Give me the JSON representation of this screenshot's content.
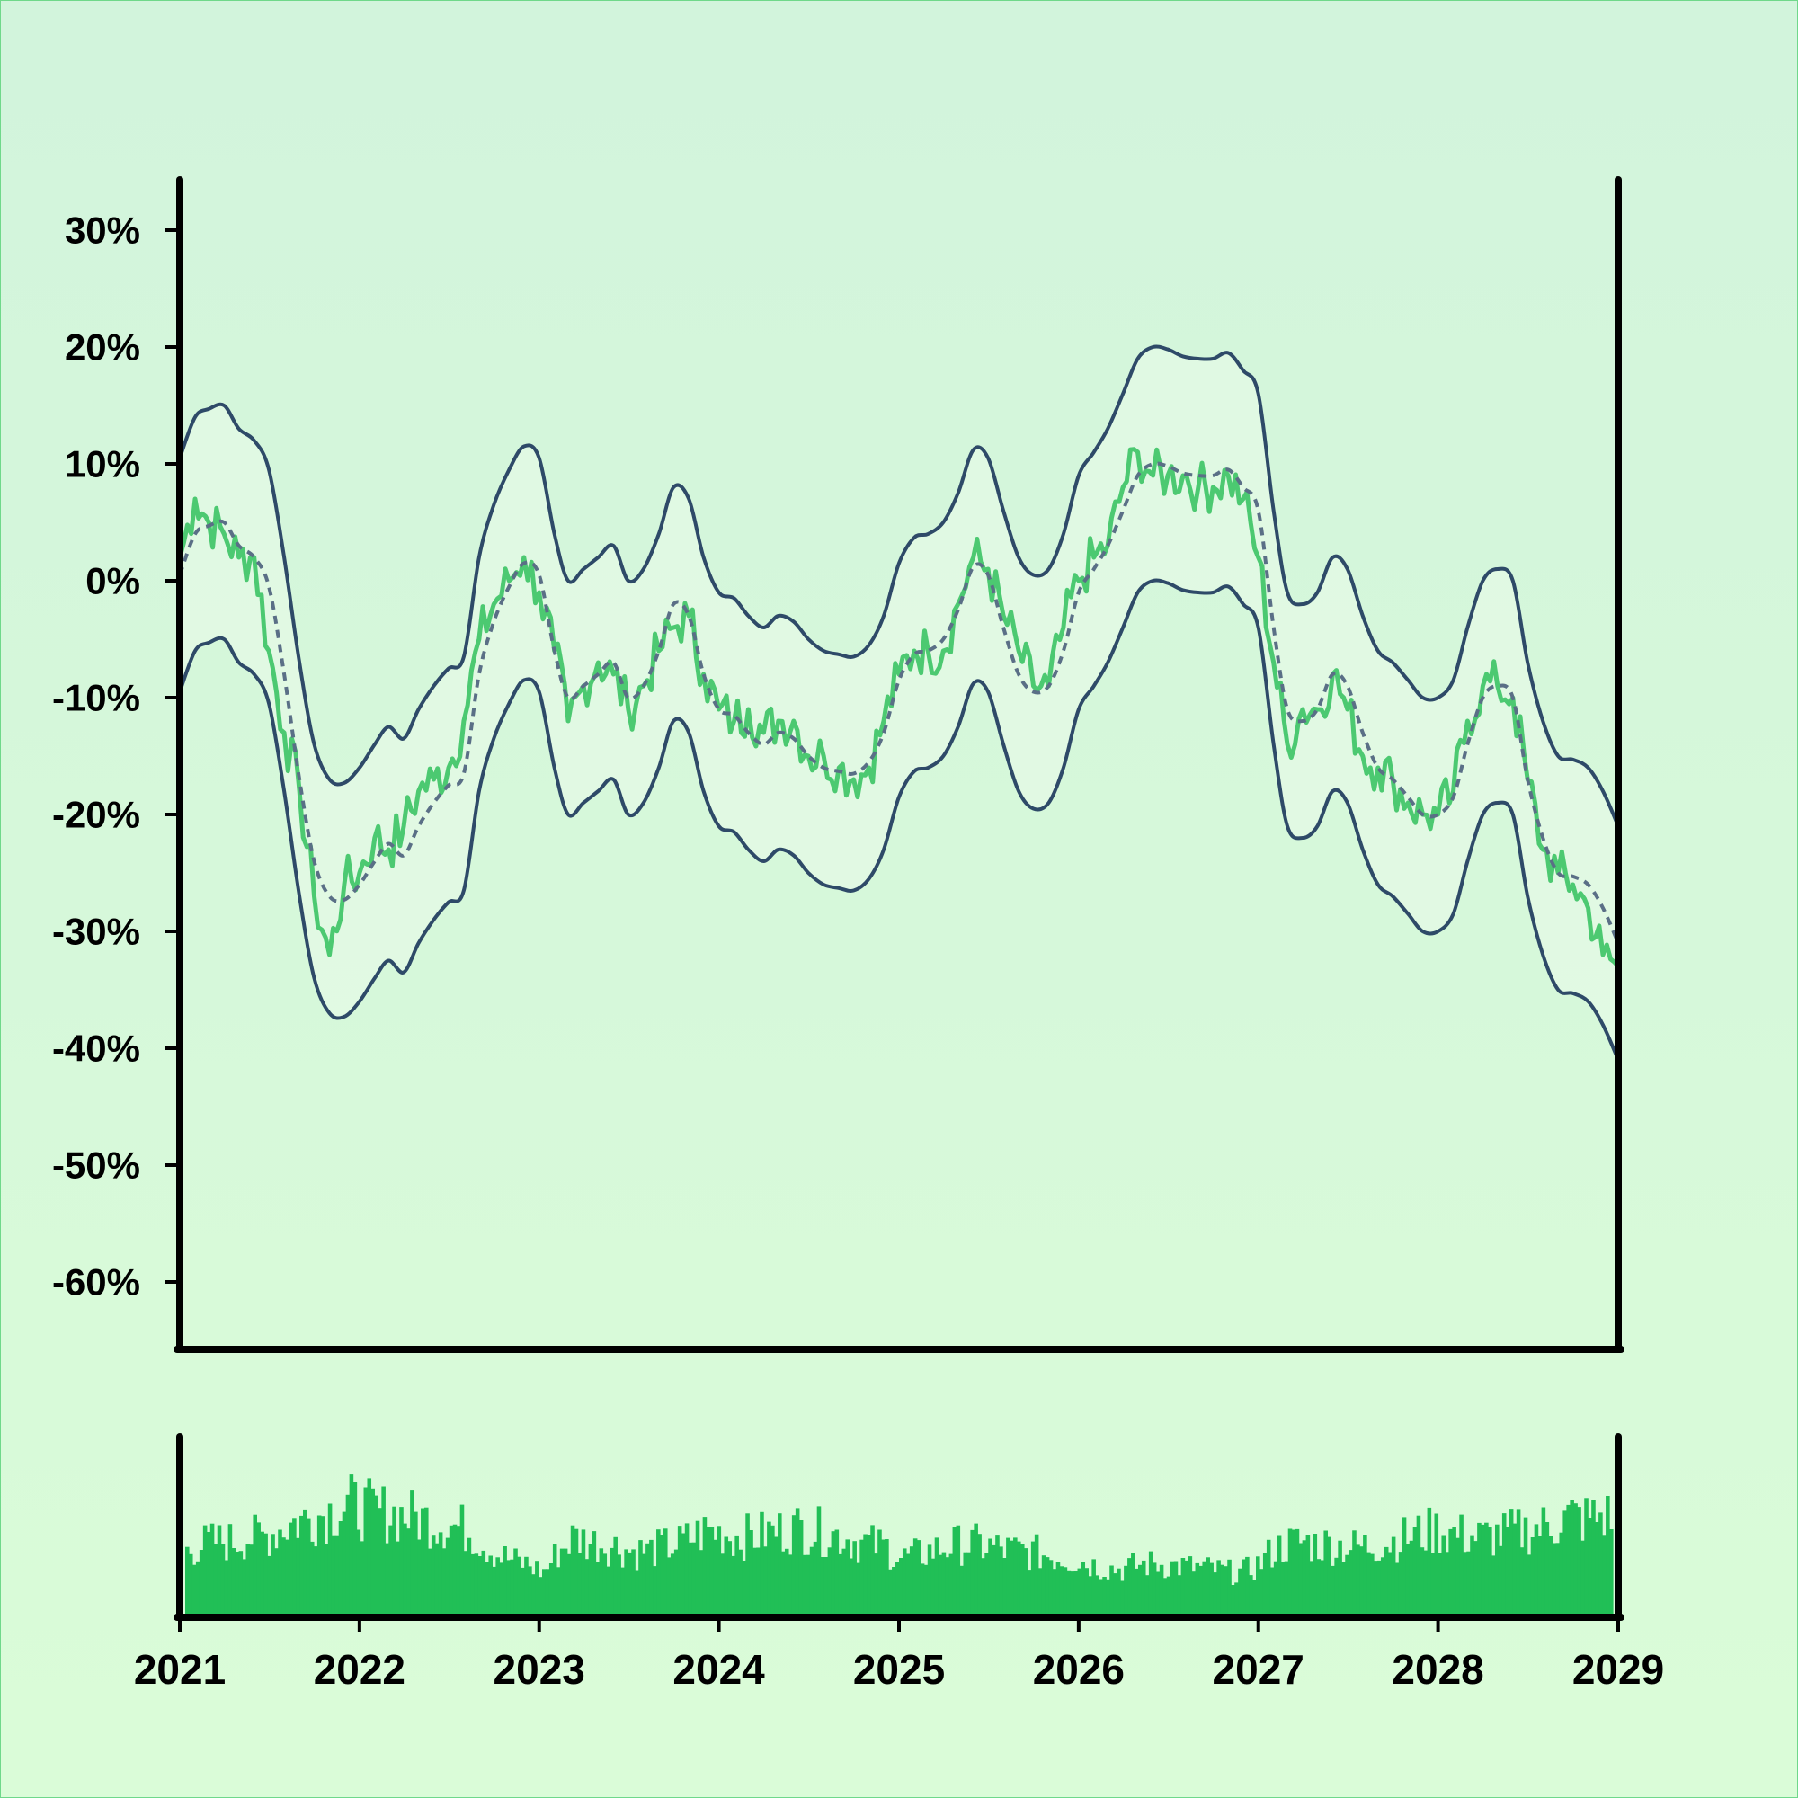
{
  "chart_data": [
    {
      "type": "line",
      "title": "",
      "xlabel": "",
      "ylabel": "",
      "x_range": [
        "2021-01-01",
        "2029-01-01"
      ],
      "ylim": [
        -0.65,
        0.35
      ],
      "y_tick_labels": [
        "30%",
        "20%",
        "10%",
        "0%",
        "-10%",
        "-20%",
        "-30%",
        "-40%",
        "-50%",
        "-60%"
      ],
      "y_tick_values": [
        0.3,
        0.2,
        0.1,
        0.0,
        -0.1,
        -0.2,
        -0.3,
        -0.4,
        -0.5,
        -0.6
      ],
      "x_tick_labels": [
        "2021",
        "2022",
        "2023",
        "2024",
        "2025",
        "2026",
        "2027",
        "2028",
        "2029"
      ],
      "grid": false,
      "legend": "none",
      "series": [
        {
          "role": "price",
          "color": "#4cc971",
          "style": "solid",
          "points": [
            [
              "2021-01-01",
              0.02
            ],
            [
              "2021-02-01",
              0.07
            ],
            [
              "2021-03-01",
              0.05
            ],
            [
              "2021-04-01",
              0.04
            ],
            [
              "2021-05-01",
              0.02
            ],
            [
              "2021-06-01",
              0.02
            ],
            [
              "2021-07-01",
              -0.06
            ],
            [
              "2021-08-01",
              -0.13
            ],
            [
              "2021-09-01",
              -0.18
            ],
            [
              "2021-10-01",
              -0.27
            ],
            [
              "2021-11-01",
              -0.32
            ],
            [
              "2021-12-01",
              -0.26
            ],
            [
              "2022-01-01",
              -0.25
            ],
            [
              "2022-02-01",
              -0.22
            ],
            [
              "2022-03-01",
              -0.23
            ],
            [
              "2022-04-01",
              -0.21
            ],
            [
              "2022-05-01",
              -0.18
            ],
            [
              "2022-06-01",
              -0.17
            ],
            [
              "2022-07-01",
              -0.16
            ],
            [
              "2022-08-01",
              -0.12
            ],
            [
              "2022-09-01",
              -0.05
            ],
            [
              "2022-10-01",
              -0.02
            ],
            [
              "2022-11-01",
              0.0
            ],
            [
              "2022-12-01",
              0.02
            ],
            [
              "2023-01-01",
              -0.01
            ],
            [
              "2023-02-01",
              -0.06
            ],
            [
              "2023-03-01",
              -0.12
            ],
            [
              "2023-04-01",
              -0.09
            ],
            [
              "2023-05-01",
              -0.07
            ],
            [
              "2023-06-01",
              -0.08
            ],
            [
              "2023-07-01",
              -0.11
            ],
            [
              "2023-08-01",
              -0.09
            ],
            [
              "2023-09-01",
              -0.06
            ],
            [
              "2023-10-01",
              -0.04
            ],
            [
              "2023-11-01",
              -0.03
            ],
            [
              "2023-12-01",
              -0.08
            ],
            [
              "2024-01-01",
              -0.11
            ],
            [
              "2024-02-01",
              -0.12
            ],
            [
              "2024-03-01",
              -0.11
            ],
            [
              "2024-04-01",
              -0.13
            ],
            [
              "2024-05-01",
              -0.12
            ],
            [
              "2024-06-01",
              -0.12
            ],
            [
              "2024-07-01",
              -0.15
            ],
            [
              "2024-08-01",
              -0.15
            ],
            [
              "2024-09-01",
              -0.16
            ],
            [
              "2024-10-01",
              -0.17
            ],
            [
              "2024-11-01",
              -0.16
            ],
            [
              "2024-12-01",
              -0.12
            ],
            [
              "2025-01-01",
              -0.08
            ],
            [
              "2025-02-01",
              -0.06
            ],
            [
              "2025-03-01",
              -0.06
            ],
            [
              "2025-04-01",
              -0.06
            ],
            [
              "2025-05-01",
              -0.02
            ],
            [
              "2025-06-01",
              0.02
            ],
            [
              "2025-07-01",
              0.01
            ],
            [
              "2025-08-01",
              -0.03
            ],
            [
              "2025-09-01",
              -0.06
            ],
            [
              "2025-10-01",
              -0.09
            ],
            [
              "2025-11-01",
              -0.09
            ],
            [
              "2025-12-01",
              -0.04
            ],
            [
              "2026-01-01",
              -0.0
            ],
            [
              "2026-02-01",
              0.02
            ],
            [
              "2026-03-01",
              0.03
            ],
            [
              "2026-04-01",
              0.08
            ],
            [
              "2026-05-01",
              0.11
            ],
            [
              "2026-06-01",
              0.09
            ],
            [
              "2026-07-01",
              0.09
            ],
            [
              "2026-08-01",
              0.09
            ],
            [
              "2026-09-01",
              0.08
            ],
            [
              "2026-10-01",
              0.08
            ],
            [
              "2026-11-01",
              0.09
            ],
            [
              "2026-12-01",
              0.07
            ],
            [
              "2027-01-01",
              0.02
            ],
            [
              "2027-02-01",
              -0.07
            ],
            [
              "2027-03-01",
              -0.14
            ],
            [
              "2027-04-01",
              -0.11
            ],
            [
              "2027-05-01",
              -0.11
            ],
            [
              "2027-06-01",
              -0.08
            ],
            [
              "2027-07-01",
              -0.11
            ],
            [
              "2027-08-01",
              -0.15
            ],
            [
              "2027-09-01",
              -0.16
            ],
            [
              "2027-10-01",
              -0.17
            ],
            [
              "2027-11-01",
              -0.19
            ],
            [
              "2027-12-01",
              -0.2
            ],
            [
              "2028-01-01",
              -0.2
            ],
            [
              "2028-02-01",
              -0.18
            ],
            [
              "2028-03-01",
              -0.12
            ],
            [
              "2028-04-01",
              -0.09
            ],
            [
              "2028-05-01",
              -0.09
            ],
            [
              "2028-06-01",
              -0.1
            ],
            [
              "2028-07-01",
              -0.17
            ],
            [
              "2028-08-01",
              -0.23
            ],
            [
              "2028-09-01",
              -0.25
            ],
            [
              "2028-10-01",
              -0.26
            ],
            [
              "2028-11-01",
              -0.28
            ],
            [
              "2028-12-01",
              -0.32
            ],
            [
              "2029-01-01",
              -0.33
            ]
          ]
        },
        {
          "role": "moving-average",
          "color": "#5a6f86",
          "style": "dashed",
          "points": [
            [
              "2021-01-01",
              0.005
            ],
            [
              "2021-02-01",
              0.04
            ],
            [
              "2021-03-01",
              0.047
            ],
            [
              "2021-04-01",
              0.05
            ],
            [
              "2021-05-01",
              0.03
            ],
            [
              "2021-06-01",
              0.02
            ],
            [
              "2021-07-01",
              -0.005
            ],
            [
              "2021-08-01",
              -0.08
            ],
            [
              "2021-09-01",
              -0.17
            ],
            [
              "2021-10-01",
              -0.24
            ],
            [
              "2021-11-01",
              -0.27
            ],
            [
              "2021-12-01",
              -0.273
            ],
            [
              "2022-01-01",
              -0.26
            ],
            [
              "2022-02-01",
              -0.24
            ],
            [
              "2022-03-01",
              -0.225
            ],
            [
              "2022-04-01",
              -0.235
            ],
            [
              "2022-05-01",
              -0.21
            ],
            [
              "2022-06-01",
              -0.19
            ],
            [
              "2022-07-01",
              -0.175
            ],
            [
              "2022-08-01",
              -0.165
            ],
            [
              "2022-09-01",
              -0.08
            ],
            [
              "2022-10-01",
              -0.035
            ],
            [
              "2022-11-01",
              -0.005
            ],
            [
              "2022-12-01",
              0.015
            ],
            [
              "2023-01-01",
              0.005
            ],
            [
              "2023-02-01",
              -0.06
            ],
            [
              "2023-03-01",
              -0.1
            ],
            [
              "2023-04-01",
              -0.09
            ],
            [
              "2023-05-01",
              -0.08
            ],
            [
              "2023-06-01",
              -0.07
            ],
            [
              "2023-07-01",
              -0.1
            ],
            [
              "2023-08-01",
              -0.09
            ],
            [
              "2023-09-01",
              -0.06
            ],
            [
              "2023-10-01",
              -0.02
            ],
            [
              "2023-11-01",
              -0.03
            ],
            [
              "2023-12-01",
              -0.08
            ],
            [
              "2024-01-01",
              -0.11
            ],
            [
              "2024-02-01",
              -0.115
            ],
            [
              "2024-03-01",
              -0.13
            ],
            [
              "2024-04-01",
              -0.14
            ],
            [
              "2024-05-01",
              -0.13
            ],
            [
              "2024-06-01",
              -0.135
            ],
            [
              "2024-07-01",
              -0.15
            ],
            [
              "2024-08-01",
              -0.16
            ],
            [
              "2024-09-01",
              -0.163
            ],
            [
              "2024-10-01",
              -0.165
            ],
            [
              "2024-11-01",
              -0.155
            ],
            [
              "2024-12-01",
              -0.13
            ],
            [
              "2025-01-01",
              -0.085
            ],
            [
              "2025-02-01",
              -0.063
            ],
            [
              "2025-03-01",
              -0.06
            ],
            [
              "2025-04-01",
              -0.05
            ],
            [
              "2025-05-01",
              -0.025
            ],
            [
              "2025-06-01",
              0.012
            ],
            [
              "2025-07-01",
              0.005
            ],
            [
              "2025-08-01",
              -0.04
            ],
            [
              "2025-09-01",
              -0.08
            ],
            [
              "2025-10-01",
              -0.095
            ],
            [
              "2025-11-01",
              -0.09
            ],
            [
              "2025-12-01",
              -0.06
            ],
            [
              "2026-01-01",
              -0.01
            ],
            [
              "2026-02-01",
              0.01
            ],
            [
              "2026-03-01",
              0.03
            ],
            [
              "2026-04-01",
              0.06
            ],
            [
              "2026-05-01",
              0.09
            ],
            [
              "2026-06-01",
              0.1
            ],
            [
              "2026-07-01",
              0.098
            ],
            [
              "2026-08-01",
              0.092
            ],
            [
              "2026-09-01",
              0.09
            ],
            [
              "2026-10-01",
              0.09
            ],
            [
              "2026-11-01",
              0.095
            ],
            [
              "2026-12-01",
              0.08
            ],
            [
              "2027-01-01",
              0.06
            ],
            [
              "2027-02-01",
              -0.04
            ],
            [
              "2027-03-01",
              -0.11
            ],
            [
              "2027-04-01",
              -0.12
            ],
            [
              "2027-05-01",
              -0.11
            ],
            [
              "2027-06-01",
              -0.08
            ],
            [
              "2027-07-01",
              -0.09
            ],
            [
              "2027-08-01",
              -0.13
            ],
            [
              "2027-09-01",
              -0.16
            ],
            [
              "2027-10-01",
              -0.17
            ],
            [
              "2027-11-01",
              -0.185
            ],
            [
              "2027-12-01",
              -0.2
            ],
            [
              "2028-01-01",
              -0.2
            ],
            [
              "2028-02-01",
              -0.185
            ],
            [
              "2028-03-01",
              -0.14
            ],
            [
              "2028-04-01",
              -0.1
            ],
            [
              "2028-05-01",
              -0.09
            ],
            [
              "2028-06-01",
              -0.1
            ],
            [
              "2028-07-01",
              -0.17
            ],
            [
              "2028-08-01",
              -0.22
            ],
            [
              "2028-09-01",
              -0.25
            ],
            [
              "2028-10-01",
              -0.253
            ],
            [
              "2028-11-01",
              -0.26
            ],
            [
              "2028-12-01",
              -0.28
            ],
            [
              "2029-01-01",
              -0.31
            ]
          ]
        }
      ],
      "bands": {
        "color": "#2e4a68",
        "fill": "#e4f9e6",
        "upper_offset": 0.1,
        "lower_offset": -0.1
      }
    },
    {
      "type": "bar",
      "title": "",
      "xlabel": "",
      "ylabel": "",
      "color": "#21bf56",
      "x_range": [
        "2021-01-01",
        "2029-01-01"
      ],
      "ylim": [
        0,
        1
      ],
      "grid": false,
      "legend": "none",
      "monthly_volume_levels": [
        0.45,
        0.5,
        0.52,
        0.52,
        0.55,
        0.55,
        0.6,
        0.65,
        0.68,
        0.72,
        0.75,
        0.78,
        0.75,
        0.73,
        0.72,
        0.7,
        0.68,
        0.66,
        0.63,
        0.6,
        0.5,
        0.42,
        0.38,
        0.35,
        0.3,
        0.45,
        0.55,
        0.52,
        0.5,
        0.48,
        0.45,
        0.45,
        0.48,
        0.5,
        0.55,
        0.6,
        0.58,
        0.55,
        0.56,
        0.58,
        0.6,
        0.62,
        0.6,
        0.58,
        0.56,
        0.52,
        0.5,
        0.48,
        0.4,
        0.42,
        0.45,
        0.48,
        0.5,
        0.5,
        0.48,
        0.46,
        0.45,
        0.44,
        0.42,
        0.4,
        0.38,
        0.35,
        0.33,
        0.32,
        0.35,
        0.36,
        0.35,
        0.34,
        0.33,
        0.32,
        0.3,
        0.3,
        0.35,
        0.45,
        0.5,
        0.52,
        0.5,
        0.5,
        0.48,
        0.48,
        0.5,
        0.52,
        0.55,
        0.58,
        0.6,
        0.58,
        0.56,
        0.55,
        0.56,
        0.58,
        0.6,
        0.62,
        0.65,
        0.7,
        0.68,
        0.7
      ]
    }
  ]
}
